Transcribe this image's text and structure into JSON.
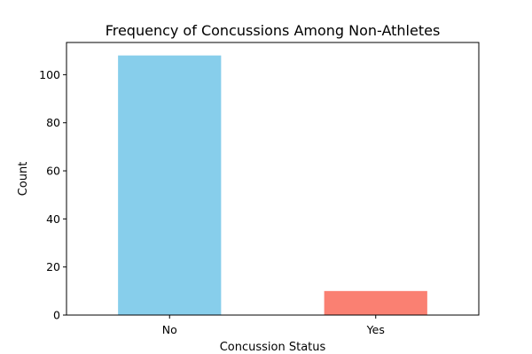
{
  "chart_data": {
    "type": "bar",
    "title": "Frequency of Concussions Among Non-Athletes",
    "xlabel": "Concussion Status",
    "ylabel": "Count",
    "categories": [
      "No",
      "Yes"
    ],
    "values": [
      108,
      10
    ],
    "colors": [
      "#87CEEB",
      "#FA8072"
    ],
    "ylim": [
      0,
      113.4
    ],
    "yticks": [
      0,
      20,
      40,
      60,
      80,
      100
    ],
    "ytick_labels": [
      "0",
      "20",
      "40",
      "60",
      "80",
      "100"
    ],
    "grid": false,
    "legend": "none"
  }
}
